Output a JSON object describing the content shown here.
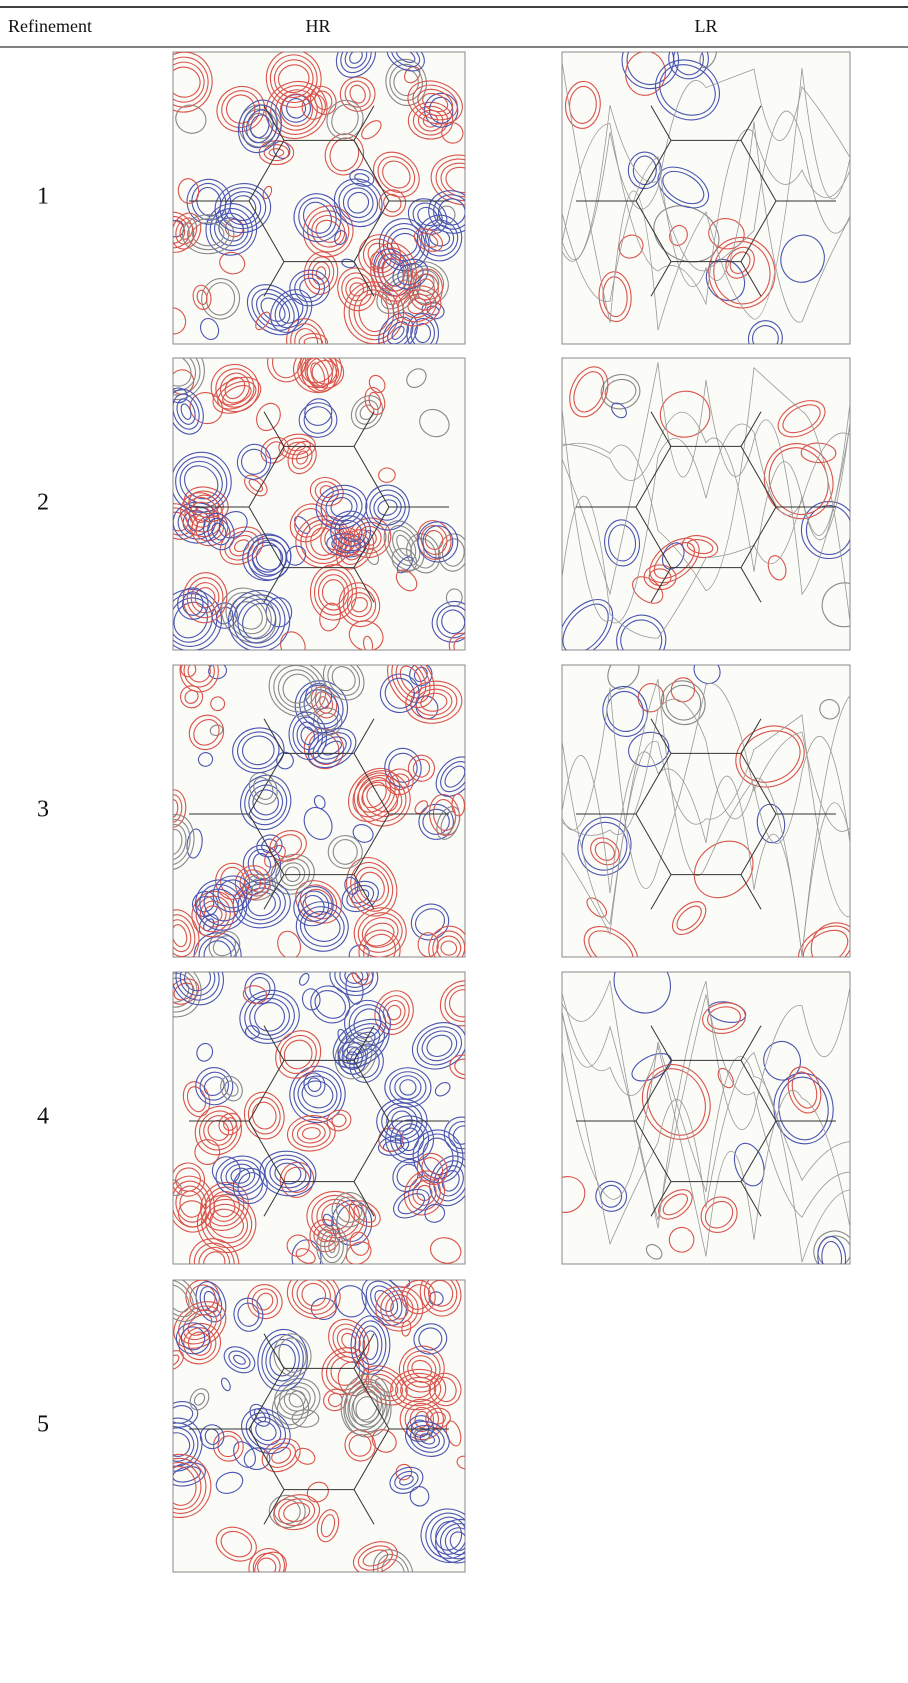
{
  "table": {
    "header": [
      "Refinement",
      "HR",
      "LR"
    ],
    "rows": [
      [
        "1"
      ],
      [
        "2"
      ],
      [
        "3"
      ],
      [
        "4"
      ],
      [
        "5"
      ]
    ]
  }
}
